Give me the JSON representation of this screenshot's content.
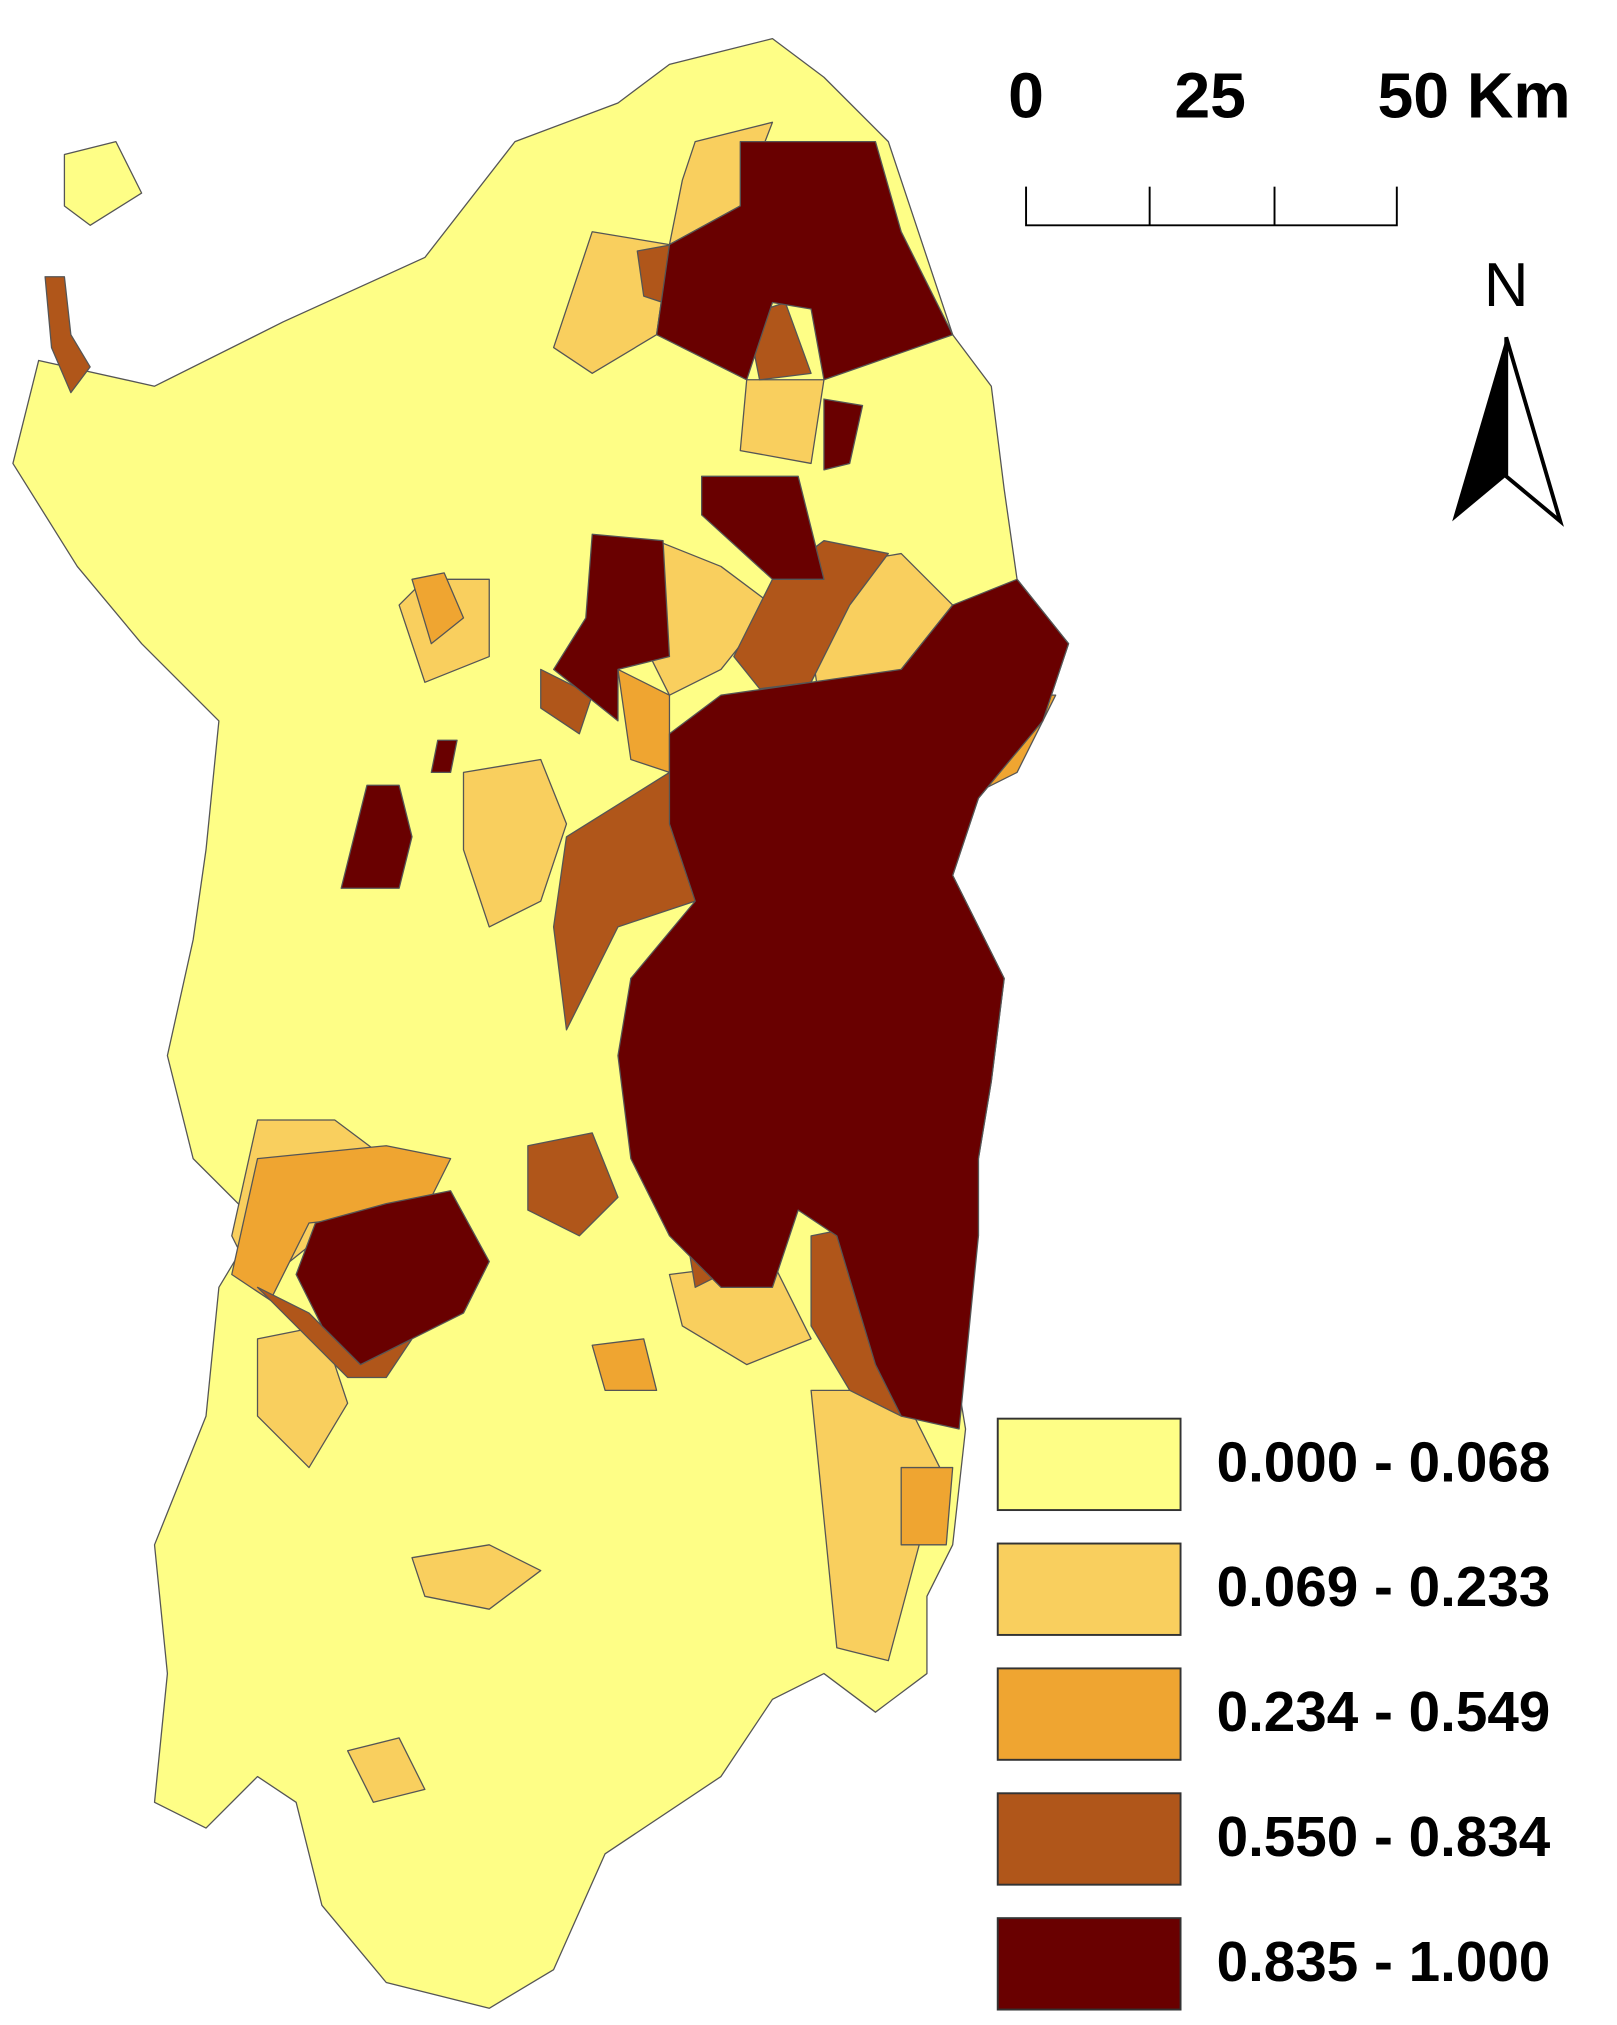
{
  "scale_bar": {
    "labels": [
      "0",
      "25",
      "50 Km"
    ]
  },
  "north_label": "N",
  "legend": [
    {
      "label": "0.000 - 0.068",
      "color": "#fefe86"
    },
    {
      "label": "0.069 - 0.233",
      "color": "#f9cf5e"
    },
    {
      "label": "0.234 - 0.549",
      "color": "#efa531"
    },
    {
      "label": "0.550 - 0.834",
      "color": "#b0561a"
    },
    {
      "label": "0.835 - 1.000",
      "color": "#690000"
    }
  ]
}
